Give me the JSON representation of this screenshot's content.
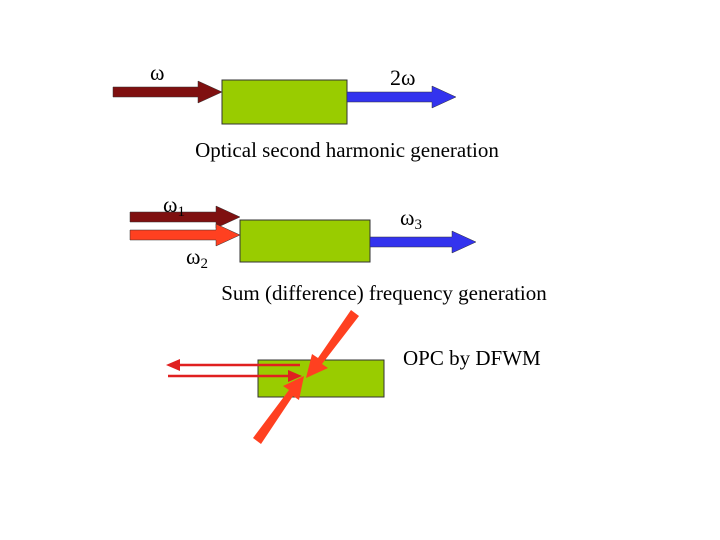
{
  "sections": [
    {
      "caption": "Optical second harmonic generation",
      "labels": [
        {
          "symbol": "ω"
        },
        {
          "symbol": "2ω"
        }
      ]
    },
    {
      "caption": "Sum (difference) frequency generation",
      "labels": [
        {
          "symbol": "ω",
          "sub": "1"
        },
        {
          "symbol": "ω",
          "sub": "3"
        },
        {
          "symbol": "ω",
          "sub": "2"
        }
      ]
    },
    {
      "caption": "OPC by DFWM"
    }
  ]
}
